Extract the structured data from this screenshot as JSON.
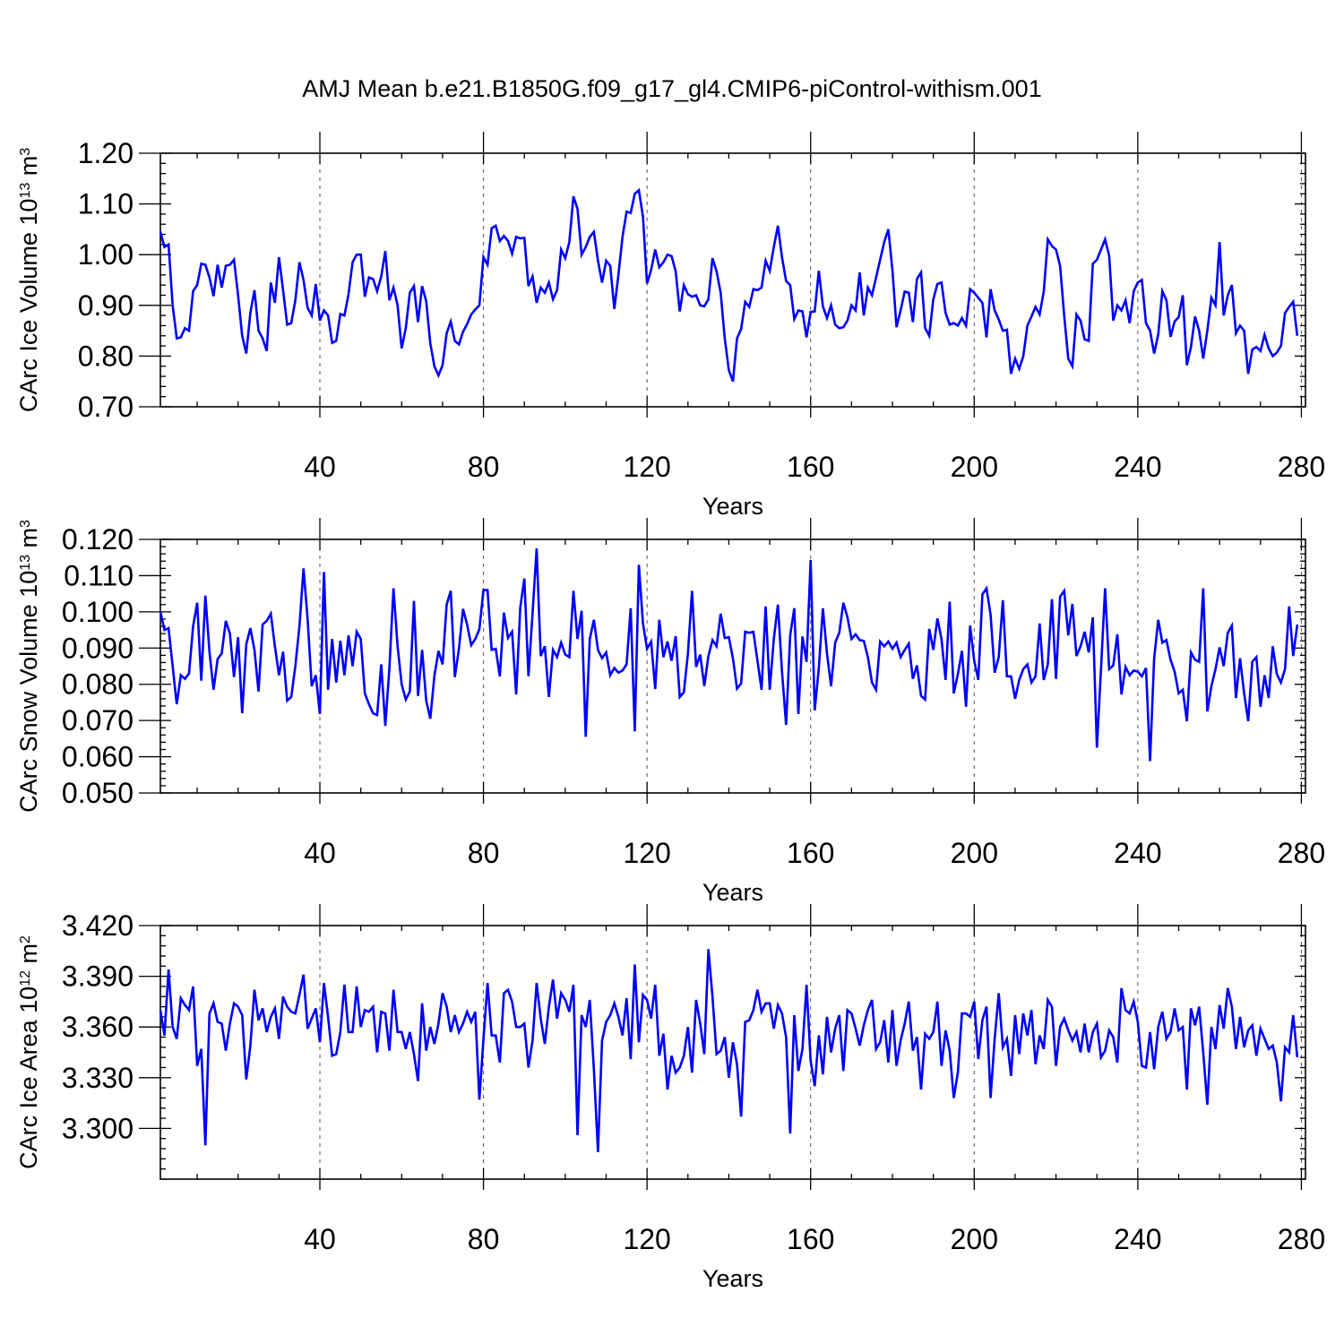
{
  "title": "AMJ Mean b.e21.B1850G.f09_g17_gl4.CMIP6-piControl-withism.001",
  "colors": {
    "line": "#0000ff",
    "frame": "#000000",
    "grid": "#555555"
  },
  "chart_data": [
    {
      "type": "line",
      "xlabel": "Years",
      "ylabel": "CArc Ice Volume 10",
      "ylabel_exp": "13",
      "ylabel_unit": "m",
      "ylabel_unit_exp": "3",
      "xlim": [
        1,
        281
      ],
      "ylim": [
        0.7,
        1.2
      ],
      "xticks": [
        40,
        80,
        120,
        160,
        200,
        240,
        280
      ],
      "xtick_labels": [
        "40",
        "80",
        "120",
        "160",
        "200",
        "240",
        "280"
      ],
      "yticks": [
        0.7,
        0.8,
        0.9,
        1.0,
        1.1,
        1.2
      ],
      "ytick_labels": [
        "0.70",
        "0.80",
        "0.90",
        "1.00",
        "1.10",
        "1.20"
      ],
      "grid": "vertical dashed at x ticks",
      "series": [
        {
          "x_start": 1,
          "values": [
            1.045,
            1.015,
            1.02,
            0.9,
            0.835,
            0.837,
            0.855,
            0.85,
            0.928,
            0.94,
            0.982,
            0.98,
            0.955,
            0.918,
            0.98,
            0.935,
            0.978,
            0.98,
            0.99,
            0.92,
            0.84,
            0.805,
            0.885,
            0.93,
            0.85,
            0.835,
            0.81,
            0.945,
            0.905,
            0.995,
            0.93,
            0.862,
            0.865,
            0.91,
            0.985,
            0.95,
            0.895,
            0.88,
            0.942,
            0.87,
            0.89,
            0.88,
            0.826,
            0.83,
            0.883,
            0.88,
            0.922,
            0.985,
            1.0,
            1.0,
            0.917,
            0.955,
            0.952,
            0.928,
            0.957,
            1.007,
            0.91,
            0.935,
            0.9,
            0.815,
            0.855,
            0.925,
            0.938,
            0.867,
            0.938,
            0.908,
            0.825,
            0.78,
            0.762,
            0.782,
            0.845,
            0.868,
            0.83,
            0.823,
            0.848,
            0.863,
            0.882,
            0.892,
            0.9,
            0.995,
            0.98,
            1.052,
            1.057,
            1.027,
            1.037,
            1.027,
            1.002,
            1.035,
            1.032,
            1.033,
            0.938,
            0.957,
            0.905,
            0.935,
            0.925,
            0.945,
            0.912,
            0.93,
            1.01,
            0.993,
            1.025,
            1.115,
            1.09,
            1.0,
            1.015,
            1.035,
            1.045,
            0.988,
            0.945,
            0.988,
            0.978,
            0.893,
            0.96,
            1.035,
            1.085,
            1.082,
            1.12,
            1.127,
            1.075,
            0.943,
            0.97,
            1.01,
            0.975,
            0.985,
            1.0,
            0.997,
            0.967,
            0.888,
            0.94,
            0.922,
            0.917,
            0.92,
            0.9,
            0.898,
            0.912,
            0.993,
            0.967,
            0.925,
            0.835,
            0.772,
            0.75,
            0.835,
            0.853,
            0.907,
            0.897,
            0.932,
            0.93,
            0.935,
            0.988,
            0.968,
            1.015,
            1.057,
            0.995,
            0.948,
            0.94,
            0.873,
            0.89,
            0.888,
            0.837,
            0.887,
            0.888,
            0.968,
            0.898,
            0.875,
            0.9,
            0.862,
            0.855,
            0.857,
            0.87,
            0.9,
            0.89,
            0.965,
            0.88,
            0.935,
            0.92,
            0.955,
            0.99,
            1.025,
            1.05,
            0.97,
            0.857,
            0.89,
            0.927,
            0.925,
            0.867,
            0.952,
            0.965,
            0.855,
            0.84,
            0.912,
            0.942,
            0.945,
            0.885,
            0.862,
            0.865,
            0.86,
            0.875,
            0.86,
            0.932,
            0.925,
            0.915,
            0.905,
            0.837,
            0.932,
            0.89,
            0.872,
            0.85,
            0.852,
            0.765,
            0.795,
            0.775,
            0.8,
            0.86,
            0.878,
            0.897,
            0.882,
            0.927,
            1.03,
            1.017,
            1.01,
            0.978,
            0.88,
            0.795,
            0.78,
            0.882,
            0.87,
            0.833,
            0.83,
            0.982,
            0.99,
            1.01,
            1.03,
            0.998,
            0.87,
            0.9,
            0.89,
            0.91,
            0.865,
            0.928,
            0.945,
            0.95,
            0.865,
            0.85,
            0.805,
            0.843,
            0.928,
            0.91,
            0.838,
            0.868,
            0.877,
            0.92,
            0.782,
            0.818,
            0.878,
            0.85,
            0.795,
            0.85,
            0.915,
            0.9,
            1.025,
            0.88,
            0.92,
            0.94,
            0.845,
            0.86,
            0.85,
            0.765,
            0.813,
            0.818,
            0.81,
            0.842,
            0.815,
            0.8,
            0.807,
            0.82,
            0.885,
            0.897,
            0.907,
            0.84
          ]
        }
      ]
    },
    {
      "type": "line",
      "xlabel": "Years",
      "ylabel": "CArc Snow Volume 10",
      "ylabel_exp": "13",
      "ylabel_unit": "m",
      "ylabel_unit_exp": "3",
      "xlim": [
        1,
        281
      ],
      "ylim": [
        0.05,
        0.12
      ],
      "xticks": [
        40,
        80,
        120,
        160,
        200,
        240,
        280
      ],
      "xtick_labels": [
        "40",
        "80",
        "120",
        "160",
        "200",
        "240",
        "280"
      ],
      "yticks": [
        0.05,
        0.06,
        0.07,
        0.08,
        0.09,
        0.1,
        0.11,
        0.12
      ],
      "ytick_labels": [
        "0.050",
        "0.060",
        "0.070",
        "0.080",
        "0.090",
        "0.100",
        "0.110",
        "0.120"
      ],
      "grid": "vertical dashed at x ticks",
      "series": [
        {
          "x_start": 1,
          "values": [
            0.1,
            0.095,
            0.0955,
            0.085,
            0.0745,
            0.0825,
            0.0815,
            0.083,
            0.096,
            0.1025,
            0.081,
            0.1045,
            0.089,
            0.0785,
            0.087,
            0.0885,
            0.0975,
            0.094,
            0.082,
            0.093,
            0.072,
            0.091,
            0.0955,
            0.0895,
            0.078,
            0.0965,
            0.0975,
            0.0995,
            0.0905,
            0.0825,
            0.089,
            0.0755,
            0.0765,
            0.085,
            0.096,
            0.112,
            0.098,
            0.0795,
            0.0825,
            0.0718,
            0.111,
            0.0785,
            0.0925,
            0.0805,
            0.092,
            0.0825,
            0.0935,
            0.085,
            0.0945,
            0.0925,
            0.0775,
            0.0745,
            0.072,
            0.0715,
            0.0855,
            0.0685,
            0.0845,
            0.1065,
            0.0905,
            0.08,
            0.0758,
            0.078,
            0.103,
            0.0768,
            0.0895,
            0.0755,
            0.0705,
            0.0823,
            0.0892,
            0.0855,
            0.102,
            0.1058,
            0.082,
            0.0898,
            0.1008,
            0.0965,
            0.0908,
            0.0925,
            0.0952,
            0.106,
            0.106,
            0.0895,
            0.0898,
            0.0822,
            0.0998,
            0.0928,
            0.0945,
            0.0772,
            0.1012,
            0.1092,
            0.0822,
            0.0995,
            0.1175,
            0.0878,
            0.0905,
            0.0765,
            0.0895,
            0.0875,
            0.0915,
            0.0882,
            0.0875,
            0.1058,
            0.0925,
            0.1003,
            0.0655,
            0.0925,
            0.0978,
            0.0895,
            0.0872,
            0.0888,
            0.0825,
            0.0845,
            0.0832,
            0.0838,
            0.0855,
            0.101,
            0.067,
            0.113,
            0.0968,
            0.0898,
            0.0918,
            0.0787,
            0.0978,
            0.0875,
            0.0918,
            0.0865,
            0.0933,
            0.0765,
            0.0778,
            0.0885,
            0.1058,
            0.0848,
            0.0882,
            0.0795,
            0.0878,
            0.0922,
            0.0905,
            0.0995,
            0.0928,
            0.093,
            0.0872,
            0.0788,
            0.0802,
            0.0945,
            0.0942,
            0.0945,
            0.0865,
            0.0785,
            0.1015,
            0.0785,
            0.0925,
            0.102,
            0.0835,
            0.0688,
            0.0935,
            0.101,
            0.0718,
            0.0932,
            0.0862,
            0.1143,
            0.0728,
            0.0845,
            0.101,
            0.0885,
            0.0795,
            0.0915,
            0.0942,
            0.1025,
            0.0985,
            0.0925,
            0.0938,
            0.0922,
            0.092,
            0.0875,
            0.0805,
            0.0785,
            0.0918,
            0.0905,
            0.0918,
            0.0898,
            0.0915,
            0.0875,
            0.0895,
            0.0912,
            0.0815,
            0.0852,
            0.0768,
            0.0758,
            0.0953,
            0.0895,
            0.0982,
            0.0925,
            0.0812,
            0.1028,
            0.0775,
            0.0828,
            0.0892,
            0.0738,
            0.0962,
            0.0865,
            0.0812,
            0.1048,
            0.1065,
            0.0992,
            0.0832,
            0.0875,
            0.1032,
            0.0822,
            0.0822,
            0.076,
            0.0812,
            0.0842,
            0.0855,
            0.0805,
            0.0822,
            0.0968,
            0.0812,
            0.0855,
            0.1035,
            0.0815,
            0.1042,
            0.1058,
            0.0935,
            0.1022,
            0.0878,
            0.0905,
            0.0945,
            0.0888,
            0.0985,
            0.0625,
            0.0842,
            0.1065,
            0.0842,
            0.0852,
            0.0938,
            0.0772,
            0.0848,
            0.0825,
            0.0838,
            0.0835,
            0.0822,
            0.0845,
            0.0588,
            0.0872,
            0.0978,
            0.0915,
            0.0922,
            0.0868,
            0.0835,
            0.0775,
            0.0785,
            0.0698,
            0.0888,
            0.0868,
            0.0862,
            0.1065,
            0.0725,
            0.0795,
            0.0842,
            0.0902,
            0.085,
            0.0942,
            0.0962,
            0.0762,
            0.0872,
            0.0775,
            0.0698,
            0.0862,
            0.0875,
            0.0738,
            0.0825,
            0.0762,
            0.0905,
            0.0828,
            0.0805,
            0.0842,
            0.1015,
            0.0878,
            0.0965
          ]
        }
      ]
    },
    {
      "type": "line",
      "xlabel": "Years",
      "ylabel": "CArc Ice Area 10",
      "ylabel_exp": "12",
      "ylabel_unit": "m",
      "ylabel_unit_exp": "2",
      "xlim": [
        1,
        281
      ],
      "ylim": [
        3.27,
        3.42
      ],
      "xticks": [
        40,
        80,
        120,
        160,
        200,
        240,
        280
      ],
      "xtick_labels": [
        "40",
        "80",
        "120",
        "160",
        "200",
        "240",
        "280"
      ],
      "yticks": [
        3.3,
        3.33,
        3.36,
        3.39,
        3.42
      ],
      "ytick_labels": [
        "3.300",
        "3.330",
        "3.360",
        "3.390",
        "3.420"
      ],
      "grid": "vertical dashed at x ticks",
      "series": [
        {
          "x_start": 1,
          "values": [
            3.37,
            3.355,
            3.394,
            3.36,
            3.353,
            3.377,
            3.373,
            3.37,
            3.384,
            3.337,
            3.347,
            3.29,
            3.368,
            3.374,
            3.363,
            3.362,
            3.346,
            3.362,
            3.374,
            3.372,
            3.367,
            3.329,
            3.349,
            3.382,
            3.364,
            3.371,
            3.357,
            3.366,
            3.371,
            3.353,
            3.378,
            3.372,
            3.369,
            3.368,
            3.379,
            3.391,
            3.359,
            3.365,
            3.371,
            3.351,
            3.386,
            3.366,
            3.343,
            3.344,
            3.357,
            3.385,
            3.357,
            3.357,
            3.384,
            3.36,
            3.37,
            3.369,
            3.372,
            3.345,
            3.369,
            3.368,
            3.346,
            3.382,
            3.357,
            3.357,
            3.347,
            3.357,
            3.344,
            3.328,
            3.374,
            3.346,
            3.36,
            3.35,
            3.362,
            3.38,
            3.372,
            3.357,
            3.367,
            3.357,
            3.362,
            3.369,
            3.363,
            3.369,
            3.317,
            3.353,
            3.386,
            3.355,
            3.355,
            3.339,
            3.38,
            3.382,
            3.375,
            3.36,
            3.36,
            3.362,
            3.336,
            3.352,
            3.386,
            3.365,
            3.35,
            3.372,
            3.388,
            3.365,
            3.38,
            3.376,
            3.369,
            3.385,
            3.296,
            3.367,
            3.36,
            3.376,
            3.335,
            3.286,
            3.352,
            3.363,
            3.367,
            3.374,
            3.366,
            3.355,
            3.377,
            3.341,
            3.397,
            3.351,
            3.379,
            3.376,
            3.365,
            3.385,
            3.343,
            3.356,
            3.323,
            3.343,
            3.333,
            3.336,
            3.343,
            3.36,
            3.333,
            3.376,
            3.362,
            3.344,
            3.406,
            3.378,
            3.344,
            3.346,
            3.354,
            3.33,
            3.351,
            3.338,
            3.307,
            3.363,
            3.364,
            3.37,
            3.382,
            3.369,
            3.374,
            3.374,
            3.359,
            3.373,
            3.368,
            3.354,
            3.297,
            3.367,
            3.334,
            3.347,
            3.385,
            3.34,
            3.325,
            3.355,
            3.332,
            3.366,
            3.345,
            3.359,
            3.367,
            3.334,
            3.37,
            3.368,
            3.359,
            3.349,
            3.361,
            3.37,
            3.376,
            3.347,
            3.351,
            3.364,
            3.339,
            3.37,
            3.337,
            3.352,
            3.362,
            3.375,
            3.346,
            3.354,
            3.323,
            3.356,
            3.353,
            3.357,
            3.375,
            3.337,
            3.358,
            3.346,
            3.318,
            3.333,
            3.368,
            3.368,
            3.366,
            3.375,
            3.341,
            3.364,
            3.372,
            3.318,
            3.353,
            3.38,
            3.348,
            3.353,
            3.331,
            3.367,
            3.344,
            3.368,
            3.355,
            3.37,
            3.338,
            3.355,
            3.347,
            3.376,
            3.372,
            3.337,
            3.36,
            3.365,
            3.358,
            3.352,
            3.357,
            3.345,
            3.362,
            3.345,
            3.357,
            3.362,
            3.342,
            3.346,
            3.358,
            3.354,
            3.339,
            3.383,
            3.37,
            3.368,
            3.375,
            3.363,
            3.337,
            3.336,
            3.357,
            3.335,
            3.36,
            3.369,
            3.353,
            3.357,
            3.371,
            3.358,
            3.36,
            3.323,
            3.371,
            3.361,
            3.372,
            3.345,
            3.314,
            3.36,
            3.347,
            3.373,
            3.359,
            3.383,
            3.372,
            3.347,
            3.366,
            3.348,
            3.358,
            3.361,
            3.343,
            3.359,
            3.353,
            3.347,
            3.349,
            3.339,
            3.316,
            3.348,
            3.345,
            3.367,
            3.342
          ]
        }
      ]
    }
  ]
}
